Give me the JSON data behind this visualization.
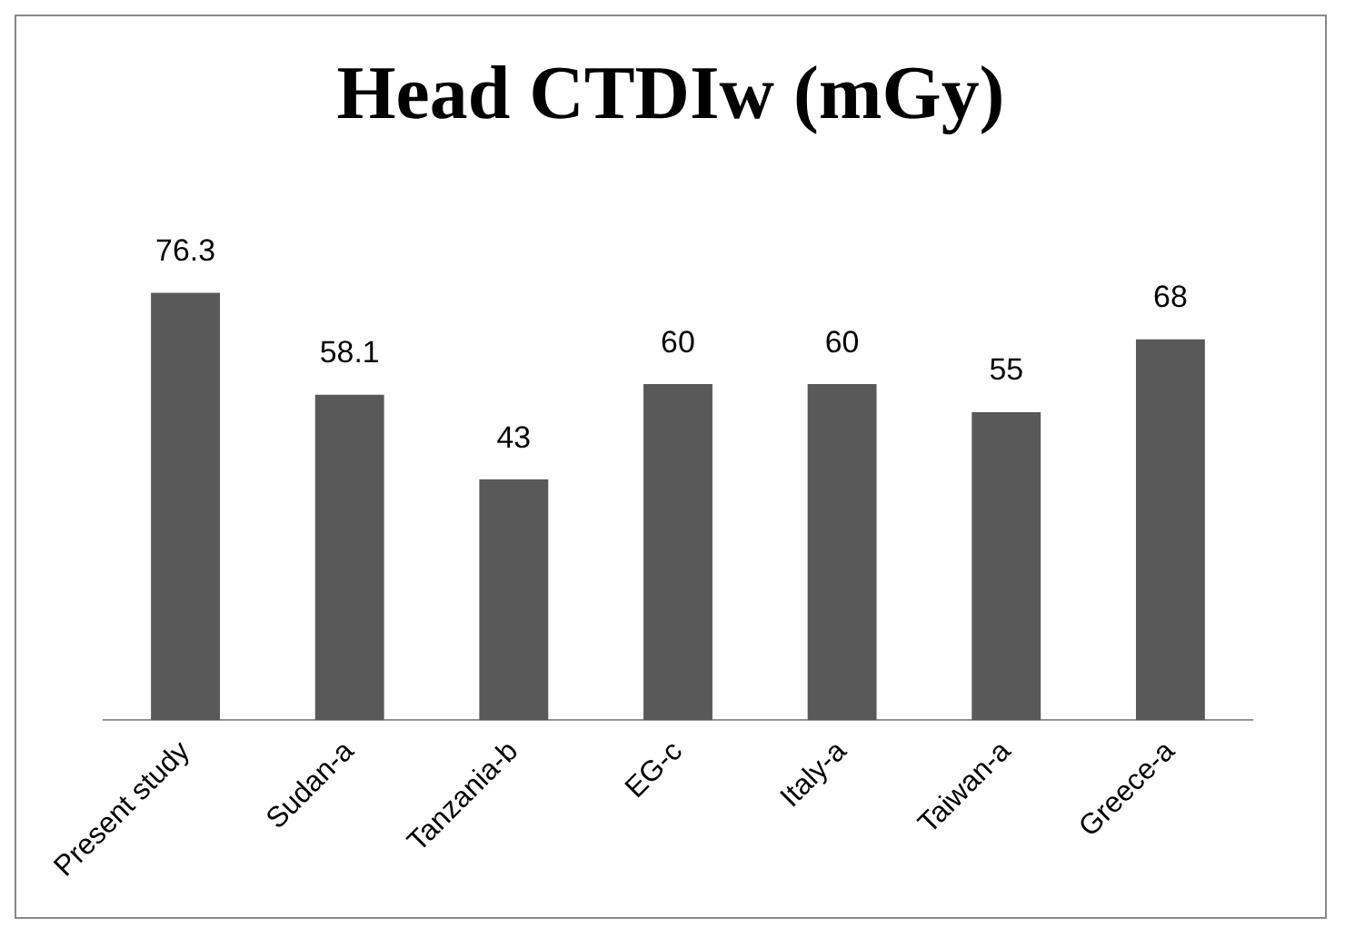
{
  "chart_data": {
    "type": "bar",
    "title": "Head CTDIw (mGy)",
    "categories": [
      "Present study",
      "Sudan-a",
      "Tanzania-b",
      "EG-c",
      "Italy-a",
      "Taiwan-a",
      "Greece-a"
    ],
    "values": [
      76.3,
      58.1,
      43,
      60,
      60,
      55,
      68
    ],
    "color": "#595959",
    "data_labels": true,
    "relative": false,
    "grid": false,
    "legend": false
  }
}
